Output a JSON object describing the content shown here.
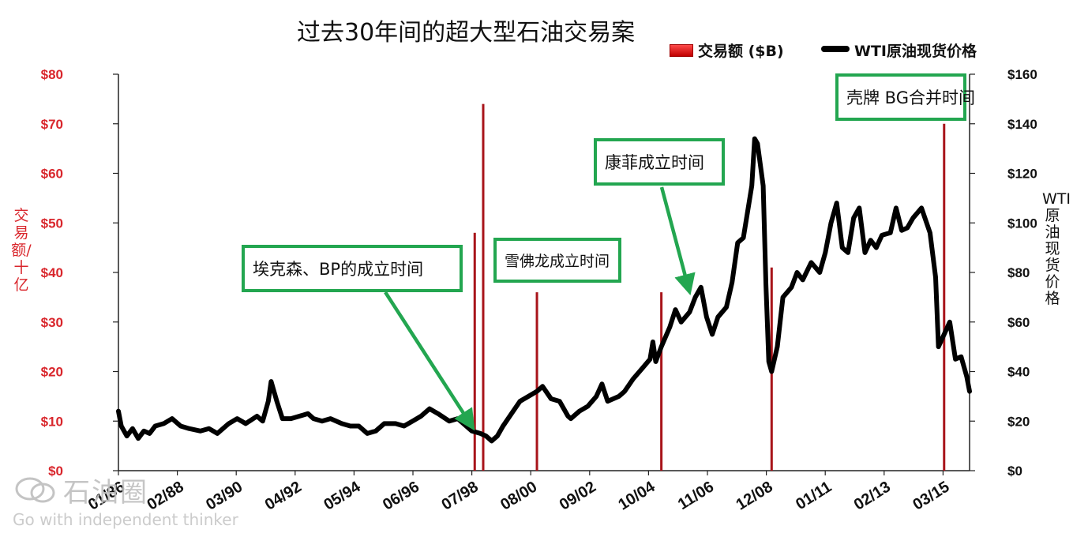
{
  "title": "过去30年间的超大型石油交易案",
  "legend": {
    "bar_label": "交易额 ($B)",
    "line_label": "WTI原油现货价格"
  },
  "colors": {
    "bars": "#a8141a",
    "line": "#000000",
    "callout_border": "#23a650",
    "left_axis_text": "#d9262c"
  },
  "callouts": [
    {
      "text": "埃克森、BP的成立时间"
    },
    {
      "text": "雪佛龙成立时间"
    },
    {
      "text": "康菲成立时间"
    },
    {
      "text": "壳牌 BG合并时间"
    }
  ],
  "watermark": {
    "text": "石油圈",
    "subtext": "Go with independent thinker",
    "icon": "wechat-icon"
  },
  "chart_data": {
    "type": "bar+line",
    "title": "过去30年间的超大型石油交易案",
    "left_axis": {
      "label": "交易额/十亿",
      "ticks": [
        "$0",
        "$10",
        "$20",
        "$30",
        "$40",
        "$50",
        "$60",
        "$70",
        "$80"
      ],
      "range": [
        0,
        80
      ]
    },
    "right_axis": {
      "label": "WTI原油现货价格",
      "ticks": [
        "$0",
        "$20",
        "$40",
        "$60",
        "$80",
        "$100",
        "$120",
        "$140",
        "$160"
      ],
      "range": [
        0,
        160
      ]
    },
    "x_axis": {
      "ticks": [
        "01/86",
        "02/88",
        "03/90",
        "04/92",
        "05/94",
        "06/96",
        "07/98",
        "08/00",
        "09/02",
        "10/04",
        "11/06",
        "12/08",
        "01/11",
        "02/13",
        "03/15"
      ],
      "range": [
        1986.0,
        2016.1
      ]
    },
    "deal_bars": {
      "name": "交易额 ($B)",
      "points": [
        {
          "x": 1998.6,
          "y": 48
        },
        {
          "x": 1998.9,
          "y": 74
        },
        {
          "x": 2000.8,
          "y": 36
        },
        {
          "x": 2005.2,
          "y": 36
        },
        {
          "x": 2009.1,
          "y": 41
        },
        {
          "x": 2015.2,
          "y": 70
        }
      ]
    },
    "series": [
      {
        "name": "WTI原油现货价格",
        "axis": "right",
        "points": [
          [
            1986.0,
            24
          ],
          [
            1986.1,
            18
          ],
          [
            1986.3,
            14
          ],
          [
            1986.5,
            17
          ],
          [
            1986.7,
            13
          ],
          [
            1986.9,
            16
          ],
          [
            1987.1,
            15
          ],
          [
            1987.3,
            18
          ],
          [
            1987.6,
            19
          ],
          [
            1987.9,
            21
          ],
          [
            1988.2,
            18
          ],
          [
            1988.5,
            17
          ],
          [
            1988.9,
            16
          ],
          [
            1989.2,
            17
          ],
          [
            1989.5,
            15
          ],
          [
            1989.9,
            19
          ],
          [
            1990.2,
            21
          ],
          [
            1990.5,
            19
          ],
          [
            1990.9,
            22
          ],
          [
            1991.1,
            20
          ],
          [
            1991.3,
            28
          ],
          [
            1991.4,
            36
          ],
          [
            1991.6,
            28
          ],
          [
            1991.8,
            21
          ],
          [
            1992.1,
            21
          ],
          [
            1992.4,
            22
          ],
          [
            1992.7,
            23
          ],
          [
            1992.9,
            21
          ],
          [
            1993.2,
            20
          ],
          [
            1993.5,
            21
          ],
          [
            1993.9,
            19
          ],
          [
            1994.2,
            18
          ],
          [
            1994.5,
            18
          ],
          [
            1994.8,
            15
          ],
          [
            1995.1,
            16
          ],
          [
            1995.4,
            19
          ],
          [
            1995.8,
            19
          ],
          [
            1996.1,
            18
          ],
          [
            1996.4,
            20
          ],
          [
            1996.7,
            22
          ],
          [
            1997.0,
            25
          ],
          [
            1997.3,
            23
          ],
          [
            1997.7,
            20
          ],
          [
            1998.0,
            21
          ],
          [
            1998.2,
            19
          ],
          [
            1998.5,
            16
          ],
          [
            1998.8,
            15
          ],
          [
            1999.0,
            14
          ],
          [
            1999.2,
            12
          ],
          [
            1999.4,
            14
          ],
          [
            1999.6,
            18
          ],
          [
            1999.9,
            23
          ],
          [
            2000.2,
            28
          ],
          [
            2000.5,
            30
          ],
          [
            2000.8,
            32
          ],
          [
            2001.0,
            34
          ],
          [
            2001.3,
            29
          ],
          [
            2001.6,
            28
          ],
          [
            2001.9,
            22
          ],
          [
            2002.0,
            21
          ],
          [
            2002.3,
            24
          ],
          [
            2002.6,
            26
          ],
          [
            2002.9,
            30
          ],
          [
            2003.1,
            35
          ],
          [
            2003.3,
            28
          ],
          [
            2003.7,
            30
          ],
          [
            2003.9,
            32
          ],
          [
            2004.2,
            37
          ],
          [
            2004.5,
            41
          ],
          [
            2004.8,
            45
          ],
          [
            2004.9,
            52
          ],
          [
            2005.0,
            44
          ],
          [
            2005.2,
            50
          ],
          [
            2005.5,
            58
          ],
          [
            2005.7,
            65
          ],
          [
            2005.9,
            60
          ],
          [
            2006.2,
            64
          ],
          [
            2006.4,
            70
          ],
          [
            2006.6,
            74
          ],
          [
            2006.8,
            62
          ],
          [
            2007.0,
            55
          ],
          [
            2007.2,
            62
          ],
          [
            2007.5,
            66
          ],
          [
            2007.7,
            76
          ],
          [
            2007.9,
            92
          ],
          [
            2008.1,
            94
          ],
          [
            2008.4,
            115
          ],
          [
            2008.5,
            134
          ],
          [
            2008.6,
            132
          ],
          [
            2008.8,
            115
          ],
          [
            2008.9,
            75
          ],
          [
            2009.0,
            44
          ],
          [
            2009.1,
            40
          ],
          [
            2009.3,
            50
          ],
          [
            2009.5,
            70
          ],
          [
            2009.8,
            74
          ],
          [
            2010.0,
            80
          ],
          [
            2010.2,
            77
          ],
          [
            2010.5,
            84
          ],
          [
            2010.8,
            80
          ],
          [
            2011.0,
            88
          ],
          [
            2011.2,
            100
          ],
          [
            2011.4,
            108
          ],
          [
            2011.6,
            90
          ],
          [
            2011.8,
            88
          ],
          [
            2012.0,
            102
          ],
          [
            2012.2,
            106
          ],
          [
            2012.4,
            88
          ],
          [
            2012.6,
            93
          ],
          [
            2012.8,
            90
          ],
          [
            2013.0,
            95
          ],
          [
            2013.3,
            96
          ],
          [
            2013.5,
            106
          ],
          [
            2013.7,
            97
          ],
          [
            2013.9,
            98
          ],
          [
            2014.1,
            102
          ],
          [
            2014.4,
            106
          ],
          [
            2014.7,
            96
          ],
          [
            2014.9,
            78
          ],
          [
            2015.0,
            50
          ],
          [
            2015.2,
            55
          ],
          [
            2015.4,
            60
          ],
          [
            2015.6,
            45
          ],
          [
            2015.8,
            46
          ],
          [
            2016.0,
            38
          ],
          [
            2016.1,
            32
          ]
        ]
      }
    ]
  }
}
